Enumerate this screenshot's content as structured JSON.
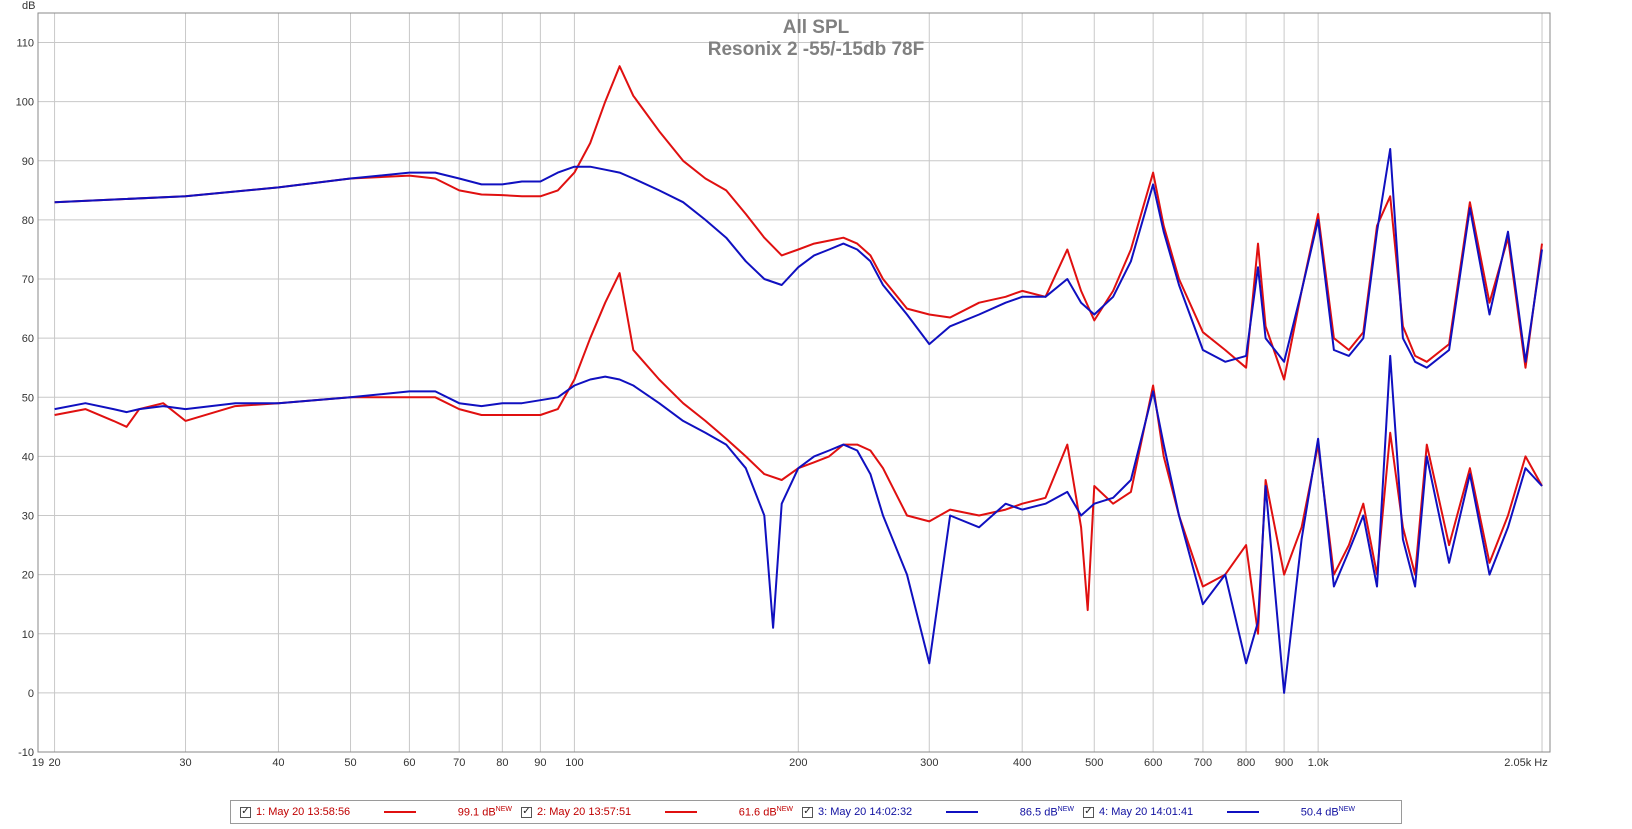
{
  "chart_data": {
    "type": "line",
    "title": "All SPL",
    "subtitle": "Resonix 2 -55/-15db 78F",
    "xlabel": "Hz",
    "ylabel": "dB",
    "x_scale": "log",
    "xlim": [
      19,
      2050
    ],
    "ylim": [
      -10,
      115
    ],
    "grid": true,
    "x_ticks": [
      {
        "v": 19,
        "label": "19"
      },
      {
        "v": 20,
        "label": "20"
      },
      {
        "v": 30,
        "label": "30"
      },
      {
        "v": 40,
        "label": "40"
      },
      {
        "v": 50,
        "label": "50"
      },
      {
        "v": 60,
        "label": "60"
      },
      {
        "v": 70,
        "label": "70"
      },
      {
        "v": 80,
        "label": "80"
      },
      {
        "v": 90,
        "label": "90"
      },
      {
        "v": 100,
        "label": "100"
      },
      {
        "v": 200,
        "label": "200"
      },
      {
        "v": 300,
        "label": "300"
      },
      {
        "v": 400,
        "label": "400"
      },
      {
        "v": 500,
        "label": "500"
      },
      {
        "v": 600,
        "label": "600"
      },
      {
        "v": 700,
        "label": "700"
      },
      {
        "v": 800,
        "label": "800"
      },
      {
        "v": 900,
        "label": "900"
      },
      {
        "v": 1000,
        "label": "1.0k"
      },
      {
        "v": 2050,
        "label": "2.05k Hz"
      }
    ],
    "y_ticks": [
      -10,
      0,
      10,
      20,
      30,
      40,
      50,
      60,
      70,
      80,
      90,
      100,
      110
    ],
    "legend_position": "bottom",
    "series": [
      {
        "name": "1: May 20 13:58:56",
        "value_label": "99.1 dB",
        "color": "#e01010",
        "x": [
          20,
          30,
          40,
          50,
          60,
          65,
          70,
          75,
          80,
          85,
          90,
          95,
          100,
          105,
          110,
          115,
          120,
          130,
          140,
          150,
          160,
          170,
          180,
          190,
          200,
          210,
          220,
          230,
          240,
          250,
          260,
          280,
          300,
          320,
          350,
          380,
          400,
          430,
          460,
          480,
          500,
          530,
          560,
          600,
          620,
          650,
          700,
          750,
          800,
          830,
          850,
          900,
          950,
          1000,
          1050,
          1100,
          1150,
          1200,
          1250,
          1300,
          1350,
          1400,
          1500,
          1600,
          1700,
          1800,
          1900,
          2000
        ],
        "y": [
          83,
          84,
          85.5,
          87,
          87.5,
          87,
          85,
          84.3,
          84.2,
          84,
          84,
          85,
          88,
          93,
          100,
          106,
          101,
          95,
          90,
          87,
          85,
          81,
          77,
          74,
          75,
          76,
          76.5,
          77,
          76,
          74,
          70,
          65,
          64,
          63.5,
          66,
          67,
          68,
          67,
          75,
          68,
          63,
          68,
          75,
          88,
          79,
          70,
          61,
          58,
          55,
          76,
          62,
          53,
          68,
          81,
          60,
          58,
          61,
          79,
          84,
          62,
          57,
          56,
          59,
          83,
          66,
          77,
          55,
          76
        ]
      },
      {
        "name": "2: May 20 13:57:51",
        "value_label": "61.6 dB",
        "color": "#e01010",
        "x": [
          20,
          22,
          24,
          25,
          26,
          28,
          30,
          35,
          40,
          50,
          60,
          65,
          70,
          75,
          80,
          85,
          90,
          95,
          100,
          105,
          110,
          115,
          120,
          130,
          140,
          150,
          160,
          170,
          180,
          190,
          200,
          210,
          220,
          230,
          240,
          250,
          260,
          280,
          300,
          320,
          350,
          380,
          400,
          430,
          460,
          480,
          490,
          500,
          530,
          560,
          600,
          620,
          650,
          700,
          750,
          800,
          830,
          850,
          900,
          950,
          1000,
          1050,
          1100,
          1150,
          1200,
          1250,
          1300,
          1350,
          1400,
          1500,
          1600,
          1700,
          1800,
          1900,
          2000
        ],
        "y": [
          47,
          48,
          46,
          45,
          48,
          49,
          46,
          48.5,
          49,
          50,
          50,
          50,
          48,
          47,
          47,
          47,
          47,
          48,
          53,
          60,
          66,
          71,
          58,
          53,
          49,
          46,
          43,
          40,
          37,
          36,
          38,
          39,
          40,
          42,
          42,
          41,
          38,
          30,
          29,
          31,
          30,
          31,
          32,
          33,
          42,
          28,
          14,
          35,
          32,
          34,
          52,
          40,
          30,
          18,
          20,
          25,
          10,
          36,
          20,
          28,
          42,
          20,
          25,
          32,
          20,
          44,
          28,
          20,
          42,
          25,
          38,
          22,
          30,
          40,
          35
        ]
      },
      {
        "name": "3: May 20 14:02:32",
        "value_label": "86.5 dB",
        "color": "#1010c0",
        "x": [
          20,
          30,
          40,
          50,
          60,
          65,
          70,
          75,
          80,
          85,
          90,
          95,
          100,
          105,
          110,
          115,
          120,
          130,
          140,
          150,
          160,
          170,
          180,
          190,
          200,
          210,
          220,
          230,
          240,
          250,
          260,
          280,
          300,
          320,
          350,
          380,
          400,
          430,
          460,
          480,
          500,
          530,
          560,
          600,
          620,
          650,
          700,
          750,
          800,
          830,
          850,
          900,
          950,
          1000,
          1050,
          1100,
          1150,
          1200,
          1250,
          1300,
          1350,
          1400,
          1500,
          1600,
          1700,
          1800,
          1900,
          2000
        ],
        "y": [
          83,
          84,
          85.5,
          87,
          88,
          88,
          87,
          86,
          86,
          86.5,
          86.5,
          88,
          89,
          89,
          88.5,
          88,
          87,
          85,
          83,
          80,
          77,
          73,
          70,
          69,
          72,
          74,
          75,
          76,
          75,
          73,
          69,
          64,
          59,
          62,
          64,
          66,
          67,
          67,
          70,
          66,
          64,
          67,
          73,
          86,
          78,
          69,
          58,
          56,
          57,
          72,
          60,
          56,
          68,
          80,
          58,
          57,
          60,
          78,
          92,
          60,
          56,
          55,
          58,
          82,
          64,
          78,
          56,
          75
        ]
      },
      {
        "name": "4: May 20 14:01:41",
        "value_label": "50.4 dB",
        "color": "#1010c0",
        "x": [
          20,
          22,
          24,
          25,
          26,
          28,
          30,
          35,
          40,
          50,
          60,
          65,
          70,
          75,
          80,
          85,
          90,
          95,
          100,
          105,
          110,
          115,
          120,
          130,
          140,
          150,
          160,
          170,
          180,
          185,
          190,
          200,
          210,
          220,
          230,
          240,
          250,
          260,
          280,
          300,
          320,
          350,
          380,
          400,
          430,
          460,
          480,
          500,
          530,
          560,
          600,
          620,
          650,
          700,
          750,
          800,
          830,
          850,
          900,
          950,
          1000,
          1050,
          1100,
          1150,
          1200,
          1250,
          1300,
          1350,
          1400,
          1500,
          1600,
          1700,
          1800,
          1900,
          2000
        ],
        "y": [
          48,
          49,
          48,
          47.5,
          48,
          48.5,
          48,
          49,
          49,
          50,
          51,
          51,
          49,
          48.5,
          49,
          49,
          49.5,
          50,
          52,
          53,
          53.5,
          53,
          52,
          49,
          46,
          44,
          42,
          38,
          30,
          11,
          32,
          38,
          40,
          41,
          42,
          41,
          37,
          30,
          20,
          5,
          30,
          28,
          32,
          31,
          32,
          34,
          30,
          32,
          33,
          36,
          51,
          42,
          30,
          15,
          20,
          5,
          12,
          35,
          0,
          26,
          43,
          18,
          24,
          30,
          18,
          57,
          26,
          18,
          40,
          22,
          37,
          20,
          28,
          38,
          35
        ]
      }
    ]
  }
}
